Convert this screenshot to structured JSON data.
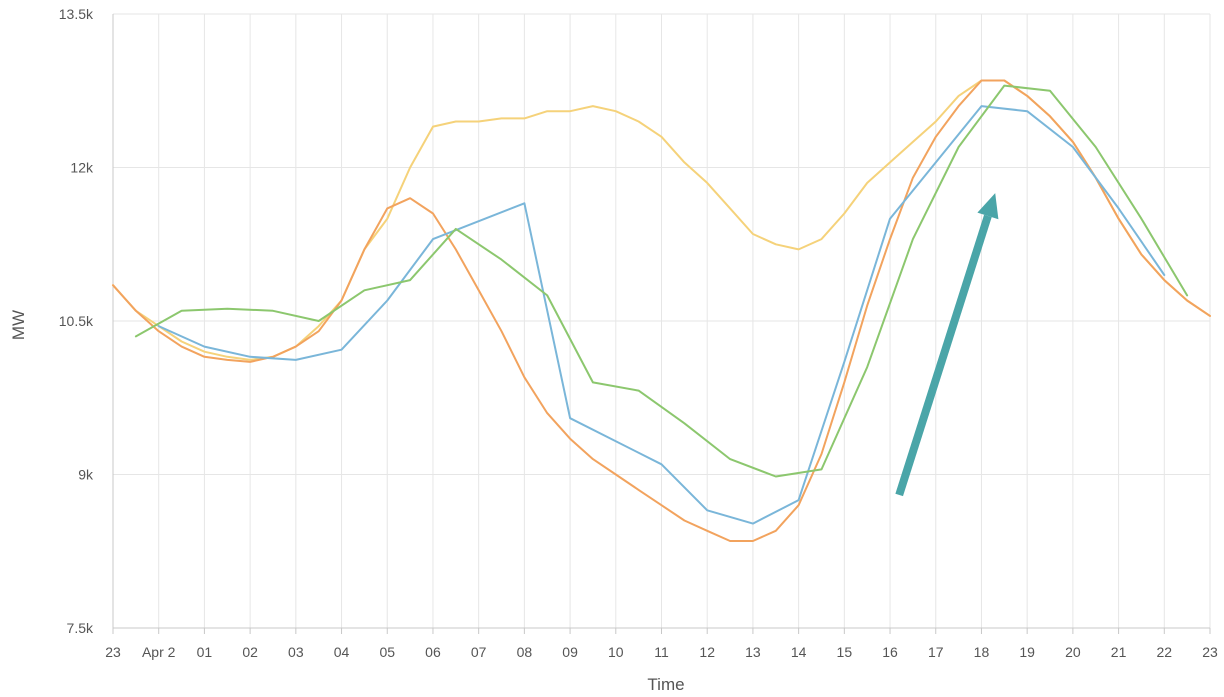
{
  "chart_data": {
    "type": "line",
    "title": "",
    "xlabel": "Time",
    "ylabel": "MW",
    "ylim": [
      7500,
      13500
    ],
    "yticks": [
      7500,
      9000,
      10500,
      12000,
      13500
    ],
    "ytick_labels": [
      "7.5k",
      "9k",
      "10.5k",
      "12k",
      "13.5k"
    ],
    "xlim": [
      0,
      24
    ],
    "xticks": [
      0,
      1,
      2,
      3,
      4,
      5,
      6,
      7,
      8,
      9,
      10,
      11,
      12,
      13,
      14,
      15,
      16,
      17,
      18,
      19,
      20,
      21,
      22,
      23,
      24
    ],
    "xtick_labels": [
      "23",
      "Apr 2",
      "01",
      "02",
      "03",
      "04",
      "05",
      "06",
      "07",
      "08",
      "09",
      "10",
      "11",
      "12",
      "13",
      "14",
      "15",
      "16",
      "17",
      "18",
      "19",
      "20",
      "21",
      "22",
      "23"
    ],
    "grid": true,
    "legend": "none",
    "series": [
      {
        "color": "#f5d27a",
        "x": [
          0,
          0.5,
          1,
          1.5,
          2,
          2.5,
          3,
          3.5,
          4,
          4.5,
          5,
          5.5,
          6,
          6.5,
          7,
          7.5,
          8,
          8.5,
          9,
          9.5,
          10,
          10.5,
          11,
          11.5,
          12,
          12.5,
          13,
          13.5,
          14,
          14.5,
          15,
          15.5,
          16,
          16.5,
          17,
          17.5,
          18,
          18.5,
          19,
          19.5,
          20,
          20.5,
          21,
          21.5,
          22,
          22.5,
          23,
          23.5,
          24
        ],
        "y": [
          10850,
          10600,
          10450,
          10300,
          10200,
          10150,
          10120,
          10150,
          10250,
          10450,
          10700,
          11200,
          11500,
          12000,
          12400,
          12450,
          12450,
          12480,
          12480,
          12550,
          12550,
          12600,
          12550,
          12450,
          12300,
          12050,
          11850,
          11600,
          11350,
          11250,
          11200,
          11300,
          11550,
          11850,
          12050,
          12250,
          12450,
          12700,
          12850,
          12850,
          12700,
          12500,
          12250,
          11900,
          11500,
          11150,
          10900,
          10700,
          10550
        ]
      },
      {
        "color": "#f2a35e",
        "x": [
          0,
          0.5,
          1,
          1.5,
          2,
          2.5,
          3,
          3.5,
          4,
          4.5,
          5,
          5.5,
          6,
          6.5,
          7,
          7.5,
          8,
          8.5,
          9,
          9.5,
          10,
          10.5,
          11,
          11.5,
          12,
          12.5,
          13,
          13.5,
          14,
          14.5,
          15,
          15.5,
          16,
          16.5,
          17,
          17.5,
          18,
          18.5,
          19,
          19.5,
          20,
          20.5,
          21,
          21.5,
          22,
          22.5,
          23,
          23.5,
          24
        ],
        "y": [
          10850,
          10600,
          10400,
          10250,
          10150,
          10120,
          10100,
          10150,
          10250,
          10400,
          10700,
          11200,
          11600,
          11700,
          11550,
          11200,
          10800,
          10400,
          9950,
          9600,
          9350,
          9150,
          9000,
          8850,
          8700,
          8550,
          8450,
          8350,
          8350,
          8450,
          8700,
          9200,
          9900,
          10650,
          11300,
          11900,
          12300,
          12600,
          12850,
          12850,
          12700,
          12500,
          12250,
          11900,
          11500,
          11150,
          10900,
          10700,
          10550
        ]
      },
      {
        "color": "#7ab6d9",
        "x": [
          1,
          2,
          3,
          4,
          5,
          6,
          7,
          9,
          10,
          12,
          13,
          14,
          15,
          16,
          17,
          18,
          19,
          20,
          21,
          22,
          23
        ],
        "y": [
          10450,
          10250,
          10150,
          10120,
          10220,
          10700,
          11300,
          11650,
          9550,
          9100,
          8650,
          8520,
          8750,
          10100,
          11500,
          12050,
          12600,
          12550,
          12200,
          11600,
          10950
        ]
      },
      {
        "color": "#8cc76e",
        "x": [
          0.5,
          1.5,
          2.5,
          3.5,
          4.5,
          5.5,
          6.5,
          7.5,
          8.5,
          9.5,
          10.5,
          11.5,
          12.5,
          13.5,
          14.5,
          15.5,
          16.5,
          17.5,
          18.5,
          19.5,
          20.5,
          21.5,
          22.5,
          23.5
        ],
        "y": [
          10350,
          10600,
          10620,
          10600,
          10500,
          10800,
          10900,
          11400,
          11100,
          10750,
          9900,
          9820,
          9500,
          9150,
          8980,
          9050,
          10050,
          11300,
          12200,
          12800,
          12750,
          12200,
          11500,
          10750
        ]
      }
    ],
    "annotation": {
      "type": "arrow",
      "color": "#4aa5a8",
      "from": [
        17.2,
        8800
      ],
      "to": [
        19.3,
        11750
      ]
    }
  }
}
